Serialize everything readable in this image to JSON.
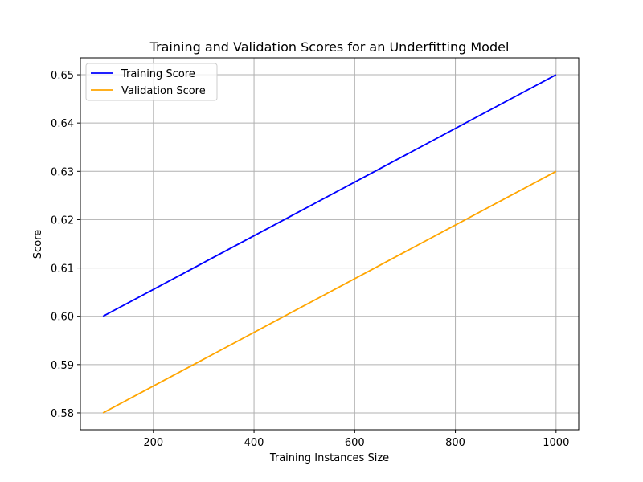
{
  "chart_data": {
    "type": "line",
    "title": "Training and Validation Scores for an Underfitting Model",
    "xlabel": "Training Instances Size",
    "ylabel": "Score",
    "x": [
      100,
      1000
    ],
    "series": [
      {
        "name": "Training Score",
        "color": "#0000ff",
        "values": [
          0.6,
          0.65
        ]
      },
      {
        "name": "Validation Score",
        "color": "#ffa500",
        "values": [
          0.58,
          0.63
        ]
      }
    ],
    "xlim": [
      55,
      1045
    ],
    "ylim": [
      0.5765,
      0.6535
    ],
    "xticks": [
      200,
      400,
      600,
      800,
      1000
    ],
    "xtick_labels": [
      "200",
      "400",
      "600",
      "800",
      "1000"
    ],
    "yticks": [
      0.58,
      0.59,
      0.6,
      0.61,
      0.62,
      0.63,
      0.64,
      0.65
    ],
    "ytick_labels": [
      "0.58",
      "0.59",
      "0.60",
      "0.61",
      "0.62",
      "0.63",
      "0.64",
      "0.65"
    ],
    "grid": true,
    "legend_position": "top-left"
  }
}
